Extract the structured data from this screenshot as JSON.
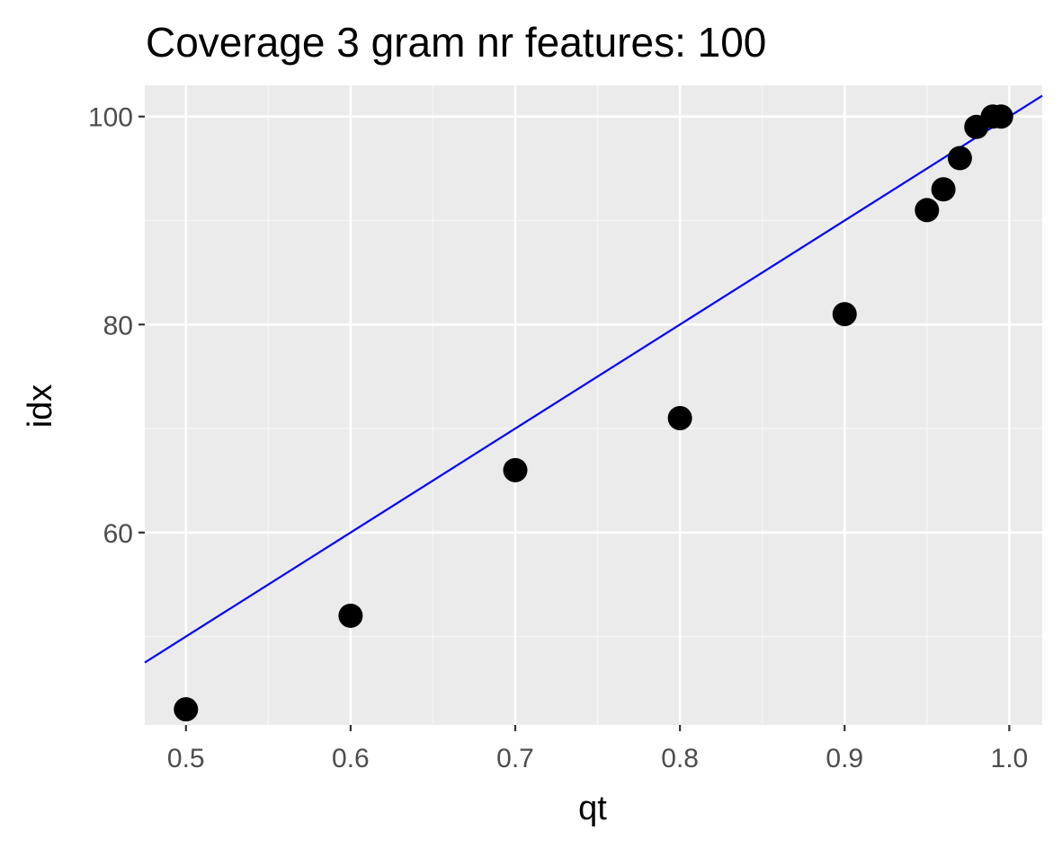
{
  "chart_data": {
    "type": "scatter",
    "title": "Coverage 3 gram nr features:  100",
    "xlabel": "qt",
    "ylabel": "idx",
    "xlim": [
      0.475,
      1.02
    ],
    "ylim": [
      41.5,
      103
    ],
    "x_ticks": [
      0.5,
      0.6,
      0.7,
      0.8,
      0.9,
      1.0
    ],
    "x_tick_labels": [
      "0.5",
      "0.6",
      "0.7",
      "0.8",
      "0.9",
      "1.0"
    ],
    "y_ticks": [
      60,
      80,
      100
    ],
    "y_tick_labels": [
      "60",
      "80",
      "100"
    ],
    "grid": true,
    "legend": "none",
    "series": [
      {
        "x": [
          0.5,
          0.6,
          0.7,
          0.8,
          0.9,
          0.95,
          0.96,
          0.97,
          0.98,
          0.99,
          0.995
        ],
        "y": [
          43,
          52,
          66,
          71,
          81,
          91,
          93,
          96,
          99,
          100,
          100
        ],
        "color": "#000000"
      }
    ],
    "reference_line": {
      "slope": 100,
      "intercept": 0,
      "color": "#0000ff"
    }
  },
  "colors": {
    "panel_background": "#ebebeb",
    "grid_major": "#ffffff",
    "grid_minor": "#f5f5f5",
    "points": "#000000",
    "line": "#0000ff"
  }
}
